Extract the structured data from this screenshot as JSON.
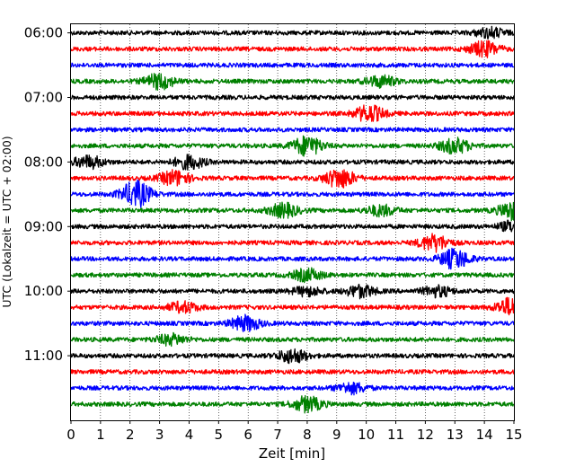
{
  "chart_data": {
    "type": "line",
    "xlabel": "Zeit  [min]",
    "ylabel": "UTC (Lokalzeit = UTC + 02:00)",
    "xlim": [
      0,
      15
    ],
    "x_ticks": [
      0,
      1,
      2,
      3,
      4,
      5,
      6,
      7,
      8,
      9,
      10,
      11,
      12,
      13,
      14,
      15
    ],
    "x_grid": true,
    "y_range": [
      "05:52",
      "12:00"
    ],
    "y_ticks": [
      "06:00",
      "07:00",
      "08:00",
      "09:00",
      "10:00",
      "11:00"
    ],
    "trace_interval_minutes": 15,
    "traces": [
      {
        "start": "06:00",
        "color": "#000000",
        "events": [
          {
            "t": 14.2,
            "amp": 1.3
          }
        ]
      },
      {
        "start": "06:15",
        "color": "#ff0000",
        "events": [
          {
            "t": 14.0,
            "amp": 2.0
          }
        ]
      },
      {
        "start": "06:30",
        "color": "#0000ff",
        "events": []
      },
      {
        "start": "06:45",
        "color": "#008000",
        "events": [
          {
            "t": 3.0,
            "amp": 2.0
          },
          {
            "t": 10.5,
            "amp": 1.5
          }
        ]
      },
      {
        "start": "07:00",
        "color": "#000000",
        "events": []
      },
      {
        "start": "07:15",
        "color": "#ff0000",
        "events": [
          {
            "t": 10.1,
            "amp": 2.2
          }
        ]
      },
      {
        "start": "07:30",
        "color": "#0000ff",
        "events": []
      },
      {
        "start": "07:45",
        "color": "#008000",
        "events": [
          {
            "t": 8.0,
            "amp": 2.6
          },
          {
            "t": 13.0,
            "amp": 2.0
          }
        ]
      },
      {
        "start": "08:00",
        "color": "#000000",
        "events": [
          {
            "t": 0.6,
            "amp": 1.6
          },
          {
            "t": 4.0,
            "amp": 1.8
          }
        ]
      },
      {
        "start": "08:15",
        "color": "#ff0000",
        "events": [
          {
            "t": 3.5,
            "amp": 2.0
          },
          {
            "t": 9.1,
            "amp": 2.6
          }
        ]
      },
      {
        "start": "08:30",
        "color": "#0000ff",
        "events": [
          {
            "t": 2.2,
            "amp": 3.5
          }
        ]
      },
      {
        "start": "08:45",
        "color": "#008000",
        "events": [
          {
            "t": 7.2,
            "amp": 1.8
          },
          {
            "t": 10.5,
            "amp": 1.4
          },
          {
            "t": 15.0,
            "amp": 2.5
          }
        ]
      },
      {
        "start": "09:00",
        "color": "#000000",
        "events": [
          {
            "t": 15.0,
            "amp": 1.5
          }
        ]
      },
      {
        "start": "09:15",
        "color": "#ff0000",
        "events": [
          {
            "t": 12.3,
            "amp": 2.2
          }
        ]
      },
      {
        "start": "09:30",
        "color": "#0000ff",
        "events": [
          {
            "t": 13.0,
            "amp": 2.6
          }
        ]
      },
      {
        "start": "09:45",
        "color": "#008000",
        "events": [
          {
            "t": 8.0,
            "amp": 1.6
          }
        ]
      },
      {
        "start": "10:00",
        "color": "#000000",
        "events": [
          {
            "t": 8.0,
            "amp": 1.2
          },
          {
            "t": 9.8,
            "amp": 1.6
          },
          {
            "t": 12.4,
            "amp": 1.4
          }
        ]
      },
      {
        "start": "10:15",
        "color": "#ff0000",
        "events": [
          {
            "t": 3.8,
            "amp": 1.4
          },
          {
            "t": 14.9,
            "amp": 2.4
          }
        ]
      },
      {
        "start": "10:30",
        "color": "#0000ff",
        "events": [
          {
            "t": 5.9,
            "amp": 2.0
          }
        ]
      },
      {
        "start": "10:45",
        "color": "#008000",
        "events": [
          {
            "t": 3.4,
            "amp": 1.4
          }
        ]
      },
      {
        "start": "11:00",
        "color": "#000000",
        "events": [
          {
            "t": 7.5,
            "amp": 1.8
          }
        ]
      },
      {
        "start": "11:15",
        "color": "#ff0000",
        "events": []
      },
      {
        "start": "11:30",
        "color": "#0000ff",
        "events": [
          {
            "t": 9.5,
            "amp": 1.4
          }
        ]
      },
      {
        "start": "11:45",
        "color": "#008000",
        "events": [
          {
            "t": 8.0,
            "amp": 2.0
          }
        ]
      }
    ]
  }
}
